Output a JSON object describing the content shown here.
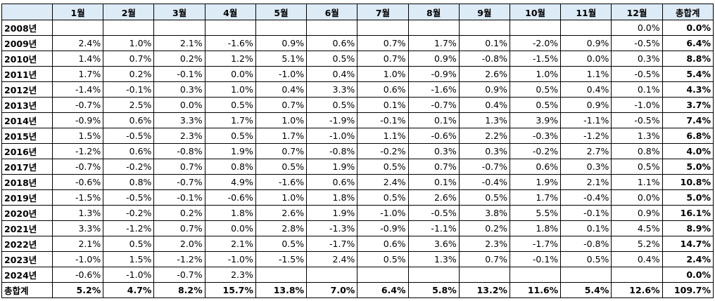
{
  "table": {
    "header": [
      null,
      "1월",
      "2월",
      "3월",
      "4월",
      "5월",
      "6월",
      "7월",
      "8월",
      "9월",
      "10월",
      "11월",
      "12월",
      "총합계"
    ],
    "rows": [
      {
        "label": "2008년",
        "cells": [
          null,
          null,
          null,
          null,
          null,
          null,
          null,
          null,
          null,
          null,
          null,
          "0.0%",
          "0.0%"
        ]
      },
      {
        "label": "2009년",
        "cells": [
          "2.4%",
          "1.0%",
          "2.1%",
          "-1.6%",
          "0.9%",
          "0.6%",
          "0.7%",
          "1.7%",
          "0.1%",
          "-2.0%",
          "0.9%",
          "-0.5%",
          "6.4%"
        ]
      },
      {
        "label": "2010년",
        "cells": [
          "1.4%",
          "0.7%",
          "0.2%",
          "1.2%",
          "5.1%",
          "0.5%",
          "0.7%",
          "0.9%",
          "-0.8%",
          "-1.5%",
          "0.0%",
          "0.3%",
          "8.8%"
        ]
      },
      {
        "label": "2011년",
        "cells": [
          "1.7%",
          "0.2%",
          "-0.1%",
          "0.0%",
          "-1.0%",
          "0.4%",
          "1.0%",
          "-0.9%",
          "2.6%",
          "1.0%",
          "1.1%",
          "-0.5%",
          "5.4%"
        ]
      },
      {
        "label": "2012년",
        "cells": [
          "-1.4%",
          "-0.1%",
          "0.3%",
          "1.0%",
          "0.4%",
          "3.3%",
          "0.6%",
          "-1.6%",
          "0.9%",
          "0.5%",
          "0.4%",
          "0.1%",
          "4.3%"
        ]
      },
      {
        "label": "2013년",
        "cells": [
          "-0.7%",
          "2.5%",
          "0.0%",
          "0.5%",
          "0.7%",
          "0.5%",
          "0.1%",
          "-0.7%",
          "0.4%",
          "0.5%",
          "0.9%",
          "-1.0%",
          "3.7%"
        ]
      },
      {
        "label": "2014년",
        "cells": [
          "-0.9%",
          "0.6%",
          "3.3%",
          "1.7%",
          "1.0%",
          "-1.9%",
          "-0.1%",
          "0.1%",
          "1.3%",
          "3.9%",
          "-1.1%",
          "-0.5%",
          "7.4%"
        ]
      },
      {
        "label": "2015년",
        "cells": [
          "1.5%",
          "-0.5%",
          "2.3%",
          "0.5%",
          "1.7%",
          "-1.0%",
          "1.1%",
          "-0.6%",
          "2.2%",
          "-0.3%",
          "-1.2%",
          "1.3%",
          "6.8%"
        ]
      },
      {
        "label": "2016년",
        "cells": [
          "-1.2%",
          "0.6%",
          "-0.8%",
          "1.9%",
          "0.7%",
          "-0.8%",
          "-0.2%",
          "0.3%",
          "0.3%",
          "-0.2%",
          "2.7%",
          "0.8%",
          "4.0%"
        ]
      },
      {
        "label": "2017년",
        "cells": [
          "-0.7%",
          "-0.2%",
          "0.7%",
          "0.8%",
          "0.5%",
          "1.9%",
          "0.5%",
          "0.7%",
          "-0.7%",
          "0.6%",
          "0.3%",
          "0.5%",
          "5.0%"
        ]
      },
      {
        "label": "2018년",
        "cells": [
          "-0.6%",
          "0.8%",
          "-0.7%",
          "4.9%",
          "-1.6%",
          "0.6%",
          "2.4%",
          "0.1%",
          "-0.4%",
          "1.9%",
          "2.1%",
          "1.1%",
          "10.8%"
        ]
      },
      {
        "label": "2019년",
        "cells": [
          "-1.5%",
          "-0.5%",
          "-0.1%",
          "-0.6%",
          "1.0%",
          "1.8%",
          "0.5%",
          "2.6%",
          "0.5%",
          "1.7%",
          "-0.4%",
          "0.0%",
          "5.0%"
        ]
      },
      {
        "label": "2020년",
        "cells": [
          "1.3%",
          "-0.2%",
          "0.2%",
          "1.8%",
          "2.6%",
          "1.9%",
          "-1.0%",
          "-0.5%",
          "3.8%",
          "5.5%",
          "-0.1%",
          "0.9%",
          "16.1%"
        ]
      },
      {
        "label": "2021년",
        "cells": [
          "3.3%",
          "-1.2%",
          "0.7%",
          "0.0%",
          "2.8%",
          "-1.3%",
          "-0.9%",
          "-1.1%",
          "0.2%",
          "1.8%",
          "0.1%",
          "4.5%",
          "8.9%"
        ]
      },
      {
        "label": "2022년",
        "cells": [
          "2.1%",
          "0.5%",
          "2.0%",
          "2.1%",
          "0.5%",
          "-1.7%",
          "0.6%",
          "3.6%",
          "2.3%",
          "-1.7%",
          "-0.8%",
          "5.2%",
          "14.7%"
        ]
      },
      {
        "label": "2023년",
        "cells": [
          "-1.0%",
          "1.5%",
          "-1.2%",
          "-1.0%",
          "-1.5%",
          "2.4%",
          "0.5%",
          "1.3%",
          "0.7%",
          "-0.1%",
          "0.5%",
          "0.4%",
          "2.4%"
        ]
      },
      {
        "label": "2024년",
        "cells": [
          "-0.6%",
          "-1.0%",
          "-0.7%",
          "2.3%",
          null,
          null,
          null,
          null,
          null,
          null,
          null,
          null,
          "0.0%"
        ]
      },
      {
        "label": "총합계",
        "cells": [
          "5.2%",
          "4.7%",
          "8.2%",
          "15.7%",
          "13.8%",
          "7.0%",
          "6.4%",
          "5.8%",
          "13.2%",
          "11.6%",
          "5.4%",
          "12.6%",
          "109.7%"
        ]
      }
    ]
  }
}
